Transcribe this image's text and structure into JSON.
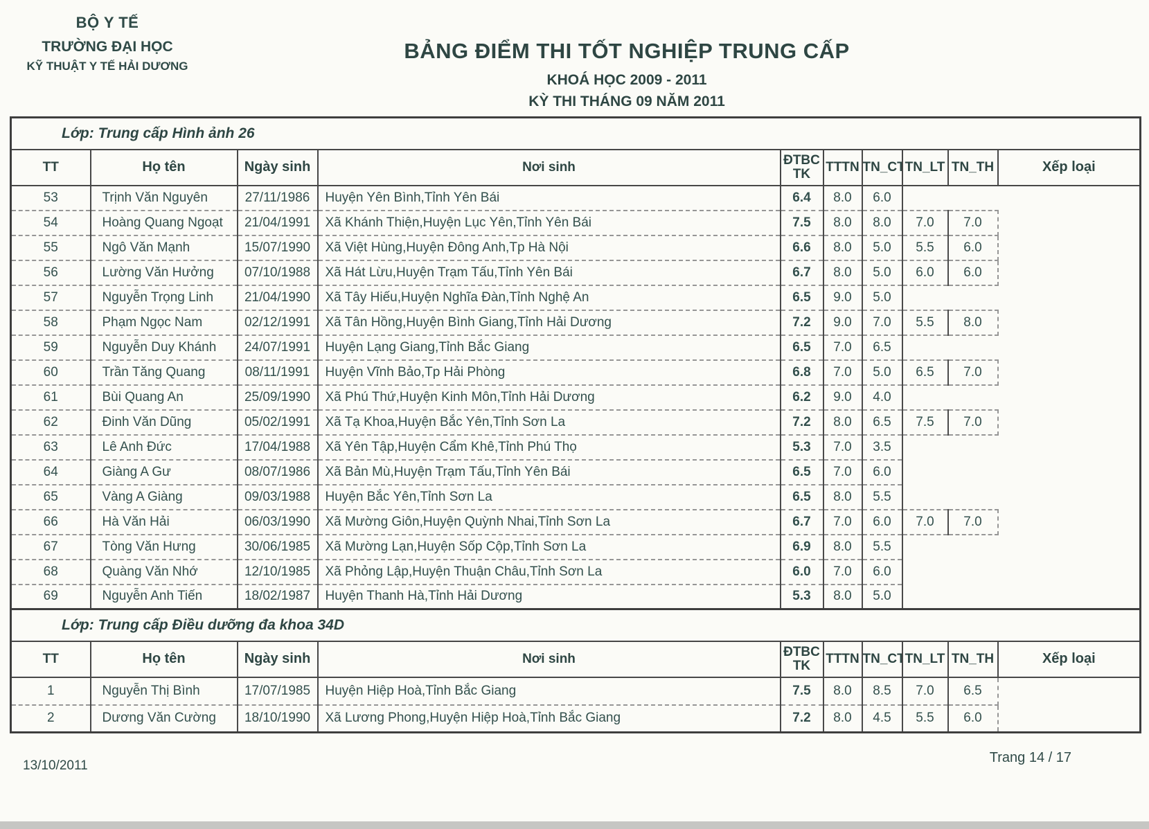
{
  "header": {
    "org1": "BỘ Y TẾ",
    "org2": "TRƯỜNG ĐẠI HỌC",
    "org3": "KỸ THUẬT Y TẾ HẢI DƯƠNG",
    "title": "BẢNG ĐIỂM THI TỐT NGHIỆP TRUNG CẤP",
    "subtitle_course": "KHOÁ HỌC 2009 - 2011",
    "subtitle_exam": "KỲ THI THÁNG 09 NĂM 2011"
  },
  "table": {
    "columns": {
      "tt": "TT",
      "name": "Họ tên",
      "dob": "Ngày sinh",
      "pob": "Nơi sinh",
      "gpa": "ĐTBC TK",
      "gpa_line1": "ĐTBC",
      "gpa_line2": "TK",
      "tttn": "TTTN",
      "tn_ct": "TN_CT",
      "tn_lt": "TN_LT",
      "tn_th": "TN_TH",
      "rank": "Xếp loại"
    },
    "sections": [
      {
        "class_label": "Lớp: Trung cấp Hình ảnh 26",
        "rows": [
          {
            "tt": "53",
            "name": "Trịnh Văn Nguyên",
            "dob": "27/11/1986",
            "pob": "Huyện Yên Bình,Tỉnh Yên Bái",
            "gpa": "6.4",
            "tttn": "8.0",
            "tn_ct": "6.0",
            "tn_lt": "",
            "tn_th": "",
            "rank": ""
          },
          {
            "tt": "54",
            "name": "Hoàng Quang Ngoạt",
            "dob": "21/04/1991",
            "pob": "Xã Khánh Thiện,Huyện Lục Yên,Tỉnh Yên Bái",
            "gpa": "7.5",
            "tttn": "8.0",
            "tn_ct": "8.0",
            "tn_lt": "7.0",
            "tn_th": "7.0",
            "rank": ""
          },
          {
            "tt": "55",
            "name": "Ngô Văn Mạnh",
            "dob": "15/07/1990",
            "pob": "Xã Việt Hùng,Huyện Đông Anh,Tp Hà Nội",
            "gpa": "6.6",
            "tttn": "8.0",
            "tn_ct": "5.0",
            "tn_lt": "5.5",
            "tn_th": "6.0",
            "rank": ""
          },
          {
            "tt": "56",
            "name": "Lường Văn Hưởng",
            "dob": "07/10/1988",
            "pob": "Xã Hát Lừu,Huyện Trạm Tấu,Tỉnh Yên Bái",
            "gpa": "6.7",
            "tttn": "8.0",
            "tn_ct": "5.0",
            "tn_lt": "6.0",
            "tn_th": "6.0",
            "rank": ""
          },
          {
            "tt": "57",
            "name": "Nguyễn Trọng Linh",
            "dob": "21/04/1990",
            "pob": "Xã Tây Hiếu,Huyện Nghĩa Đàn,Tỉnh Nghệ An",
            "gpa": "6.5",
            "tttn": "9.0",
            "tn_ct": "5.0",
            "tn_lt": "",
            "tn_th": "",
            "rank": ""
          },
          {
            "tt": "58",
            "name": "Phạm Ngọc Nam",
            "dob": "02/12/1991",
            "pob": "Xã Tân Hồng,Huyện Bình Giang,Tỉnh Hải Dương",
            "gpa": "7.2",
            "tttn": "9.0",
            "tn_ct": "7.0",
            "tn_lt": "5.5",
            "tn_th": "8.0",
            "rank": ""
          },
          {
            "tt": "59",
            "name": "Nguyễn Duy Khánh",
            "dob": "24/07/1991",
            "pob": "Huyện Lạng Giang,Tỉnh Bắc Giang",
            "gpa": "6.5",
            "tttn": "7.0",
            "tn_ct": "6.5",
            "tn_lt": "",
            "tn_th": "",
            "rank": ""
          },
          {
            "tt": "60",
            "name": "Trần Tăng Quang",
            "dob": "08/11/1991",
            "pob": "Huyện Vĩnh Bảo,Tp Hải Phòng",
            "gpa": "6.8",
            "tttn": "7.0",
            "tn_ct": "5.0",
            "tn_lt": "6.5",
            "tn_th": "7.0",
            "rank": ""
          },
          {
            "tt": "61",
            "name": "Bùi Quang An",
            "dob": "25/09/1990",
            "pob": "Xã Phú Thứ,Huyện Kinh Môn,Tỉnh Hải Dương",
            "gpa": "6.2",
            "tttn": "9.0",
            "tn_ct": "4.0",
            "tn_lt": "",
            "tn_th": "",
            "rank": ""
          },
          {
            "tt": "62",
            "name": "Đinh Văn Dũng",
            "dob": "05/02/1991",
            "pob": "Xã Tạ Khoa,Huyện Bắc Yên,Tỉnh Sơn La",
            "gpa": "7.2",
            "tttn": "8.0",
            "tn_ct": "6.5",
            "tn_lt": "7.5",
            "tn_th": "7.0",
            "rank": ""
          },
          {
            "tt": "63",
            "name": "Lê Anh Đức",
            "dob": "17/04/1988",
            "pob": "Xã Yên Tập,Huyện Cẩm Khê,Tỉnh Phú Thọ",
            "gpa": "5.3",
            "tttn": "7.0",
            "tn_ct": "3.5",
            "tn_lt": "",
            "tn_th": "",
            "rank": ""
          },
          {
            "tt": "64",
            "name": "Giàng A Gư",
            "dob": "08/07/1986",
            "pob": "Xã Bản Mù,Huyện Trạm Tấu,Tỉnh Yên Bái",
            "gpa": "6.5",
            "tttn": "7.0",
            "tn_ct": "6.0",
            "tn_lt": "",
            "tn_th": "",
            "rank": ""
          },
          {
            "tt": "65",
            "name": "Vàng A Giàng",
            "dob": "09/03/1988",
            "pob": "Huyện Bắc Yên,Tỉnh Sơn La",
            "gpa": "6.5",
            "tttn": "8.0",
            "tn_ct": "5.5",
            "tn_lt": "",
            "tn_th": "",
            "rank": ""
          },
          {
            "tt": "66",
            "name": "Hà Văn Hải",
            "dob": "06/03/1990",
            "pob": "Xã Mường Giôn,Huyện Quỳnh Nhai,Tỉnh Sơn La",
            "gpa": "6.7",
            "tttn": "7.0",
            "tn_ct": "6.0",
            "tn_lt": "7.0",
            "tn_th": "7.0",
            "rank": ""
          },
          {
            "tt": "67",
            "name": "Tòng Văn Hưng",
            "dob": "30/06/1985",
            "pob": "Xã Mường Lạn,Huyện Sốp Cộp,Tỉnh Sơn La",
            "gpa": "6.9",
            "tttn": "8.0",
            "tn_ct": "5.5",
            "tn_lt": "",
            "tn_th": "",
            "rank": ""
          },
          {
            "tt": "68",
            "name": "Quàng Văn Nhớ",
            "dob": "12/10/1985",
            "pob": "Xã Phỏng Lập,Huyện Thuận Châu,Tỉnh Sơn La",
            "gpa": "6.0",
            "tttn": "7.0",
            "tn_ct": "6.0",
            "tn_lt": "",
            "tn_th": "",
            "rank": ""
          },
          {
            "tt": "69",
            "name": "Nguyễn Anh Tiến",
            "dob": "18/02/1987",
            "pob": "Huyện Thanh Hà,Tỉnh Hải Dương",
            "gpa": "5.3",
            "tttn": "8.0",
            "tn_ct": "5.0",
            "tn_lt": "",
            "tn_th": "",
            "rank": ""
          }
        ]
      },
      {
        "class_label": "Lớp: Trung cấp Điều dưỡng đa khoa 34D",
        "rows": [
          {
            "tt": "1",
            "name": "Nguyễn Thị Bình",
            "dob": "17/07/1985",
            "pob": "Huyện Hiệp Hoà,Tỉnh Bắc Giang",
            "gpa": "7.5",
            "tttn": "8.0",
            "tn_ct": "8.5",
            "tn_lt": "7.0",
            "tn_th": "6.5",
            "rank": ""
          },
          {
            "tt": "2",
            "name": "Dương Văn Cường",
            "dob": "18/10/1990",
            "pob": "Xã Lương Phong,Huyện Hiệp Hoà,Tỉnh Bắc Giang",
            "gpa": "7.2",
            "tttn": "8.0",
            "tn_ct": "4.5",
            "tn_lt": "5.5",
            "tn_th": "6.0",
            "rank": ""
          }
        ]
      }
    ]
  },
  "footer": {
    "date": "13/10/2011",
    "page": "Trang 14 / 17"
  },
  "colors": {
    "ink": "#33504d"
  }
}
